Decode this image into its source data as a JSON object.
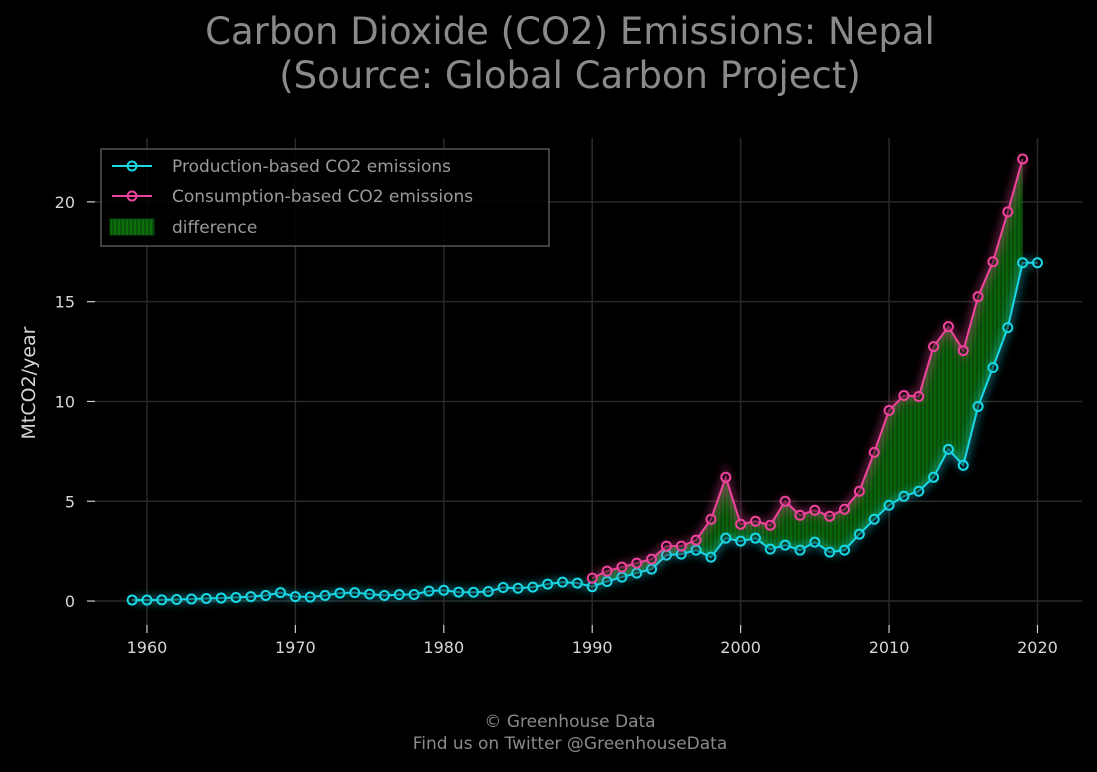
{
  "title": "Carbon Dioxide (CO2) Emissions: Nepal\n(Source: Global Carbon Project)",
  "footer": {
    "line1": "© Greenhouse Data",
    "line2": "Find us on Twitter @GreenhouseData"
  },
  "colors": {
    "production": "#19d8e6",
    "consumption": "#f0449c",
    "difference": "#0a7d0a",
    "grid": "#2a2a2a",
    "background": "#000000"
  },
  "chart_data": {
    "type": "line",
    "title": "Carbon Dioxide (CO2) Emissions: Nepal (Source: Global Carbon Project)",
    "xlabel": "",
    "ylabel": "MtCO2/year",
    "xlim": [
      1956.5,
      2023
    ],
    "ylim": [
      -1.2,
      23.2
    ],
    "xticks": [
      1960,
      1970,
      1980,
      1990,
      2000,
      2010,
      2020
    ],
    "yticks": [
      0,
      5,
      10,
      15,
      20
    ],
    "grid": true,
    "legend_position": "upper left",
    "legend": [
      "Production-based CO2 emissions",
      "Consumption-based CO2 emissions",
      "difference"
    ],
    "series": [
      {
        "name": "Production-based CO2 emissions",
        "x": [
          1959,
          1960,
          1961,
          1962,
          1963,
          1964,
          1965,
          1966,
          1967,
          1968,
          1969,
          1970,
          1971,
          1972,
          1973,
          1974,
          1975,
          1976,
          1977,
          1978,
          1979,
          1980,
          1981,
          1982,
          1983,
          1984,
          1985,
          1986,
          1987,
          1988,
          1989,
          1990,
          1991,
          1992,
          1993,
          1994,
          1995,
          1996,
          1997,
          1998,
          1999,
          2000,
          2001,
          2002,
          2003,
          2004,
          2005,
          2006,
          2007,
          2008,
          2009,
          2010,
          2011,
          2012,
          2013,
          2014,
          2015,
          2016,
          2017,
          2018,
          2019,
          2020
        ],
        "values": [
          0.05,
          0.05,
          0.06,
          0.08,
          0.1,
          0.13,
          0.15,
          0.18,
          0.22,
          0.28,
          0.42,
          0.22,
          0.2,
          0.28,
          0.4,
          0.42,
          0.35,
          0.28,
          0.32,
          0.33,
          0.5,
          0.54,
          0.45,
          0.44,
          0.48,
          0.68,
          0.64,
          0.7,
          0.85,
          0.95,
          0.9,
          0.72,
          0.98,
          1.2,
          1.4,
          1.6,
          2.3,
          2.35,
          2.55,
          2.2,
          3.15,
          3.0,
          3.15,
          2.6,
          2.8,
          2.55,
          2.95,
          2.45,
          2.55,
          3.35,
          4.1,
          4.8,
          5.25,
          5.5,
          6.2,
          7.6,
          6.8,
          9.75,
          11.7,
          13.7,
          16.95,
          16.95
        ]
      },
      {
        "name": "Consumption-based CO2 emissions",
        "x": [
          1990,
          1991,
          1992,
          1993,
          1994,
          1995,
          1996,
          1997,
          1998,
          1999,
          2000,
          2001,
          2002,
          2003,
          2004,
          2005,
          2006,
          2007,
          2008,
          2009,
          2010,
          2011,
          2012,
          2013,
          2014,
          2015,
          2016,
          2017,
          2018,
          2019
        ],
        "values": [
          1.15,
          1.5,
          1.7,
          1.9,
          2.1,
          2.75,
          2.75,
          3.05,
          4.1,
          6.2,
          3.85,
          4.0,
          3.8,
          5.0,
          4.3,
          4.55,
          4.25,
          4.6,
          5.5,
          7.45,
          9.55,
          10.3,
          10.25,
          12.75,
          13.75,
          12.55,
          15.25,
          17.0,
          19.5,
          22.15
        ]
      }
    ],
    "difference": {
      "name": "difference",
      "x_range": [
        1990,
        2019
      ]
    }
  }
}
